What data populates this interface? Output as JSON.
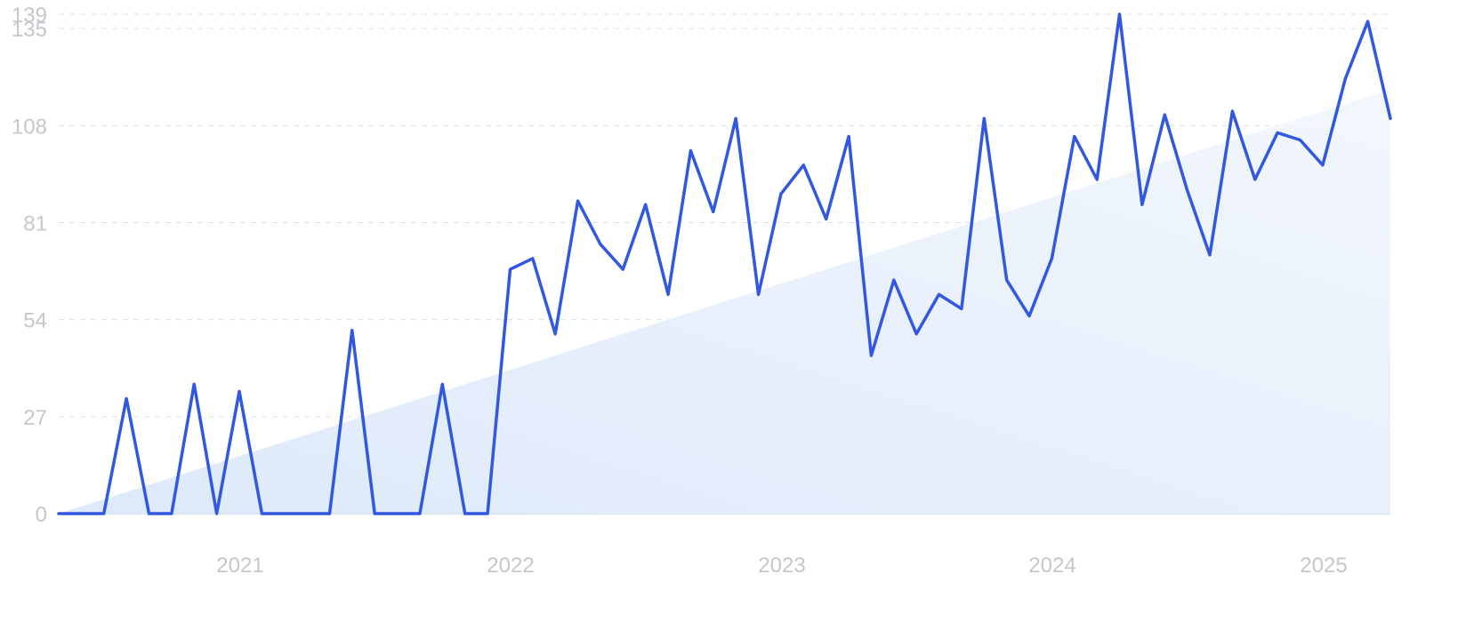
{
  "chart_data": {
    "type": "line",
    "title": "",
    "xlabel": "",
    "ylabel": "",
    "ylim": [
      0,
      139
    ],
    "y_ticks": [
      "0",
      "27",
      "54",
      "81",
      "108",
      "135",
      "139"
    ],
    "x_ticks": [
      "2021",
      "2022",
      "2023",
      "2024",
      "2025"
    ],
    "grid": true,
    "colors": {
      "line": "#3358e0",
      "trend_fill": "#e3edfb",
      "grid": "#d6e2ec",
      "tick_text": "#c4c7cc"
    },
    "series": [
      {
        "values": [
          0,
          0,
          0,
          32,
          0,
          0,
          36,
          0,
          34,
          0,
          0,
          0,
          0,
          51,
          0,
          0,
          0,
          36,
          0,
          0,
          68,
          71,
          50,
          87,
          75,
          68,
          86,
          61,
          101,
          84,
          110,
          61,
          89,
          97,
          82,
          105,
          44,
          65,
          50,
          61,
          57,
          110,
          65,
          55,
          71,
          105,
          93,
          139,
          86,
          111,
          90,
          72,
          112,
          93,
          106,
          104,
          97,
          121,
          137,
          110
        ]
      },
      {
        "type": "area-trend",
        "values_start_end": [
          0,
          118
        ]
      }
    ]
  }
}
